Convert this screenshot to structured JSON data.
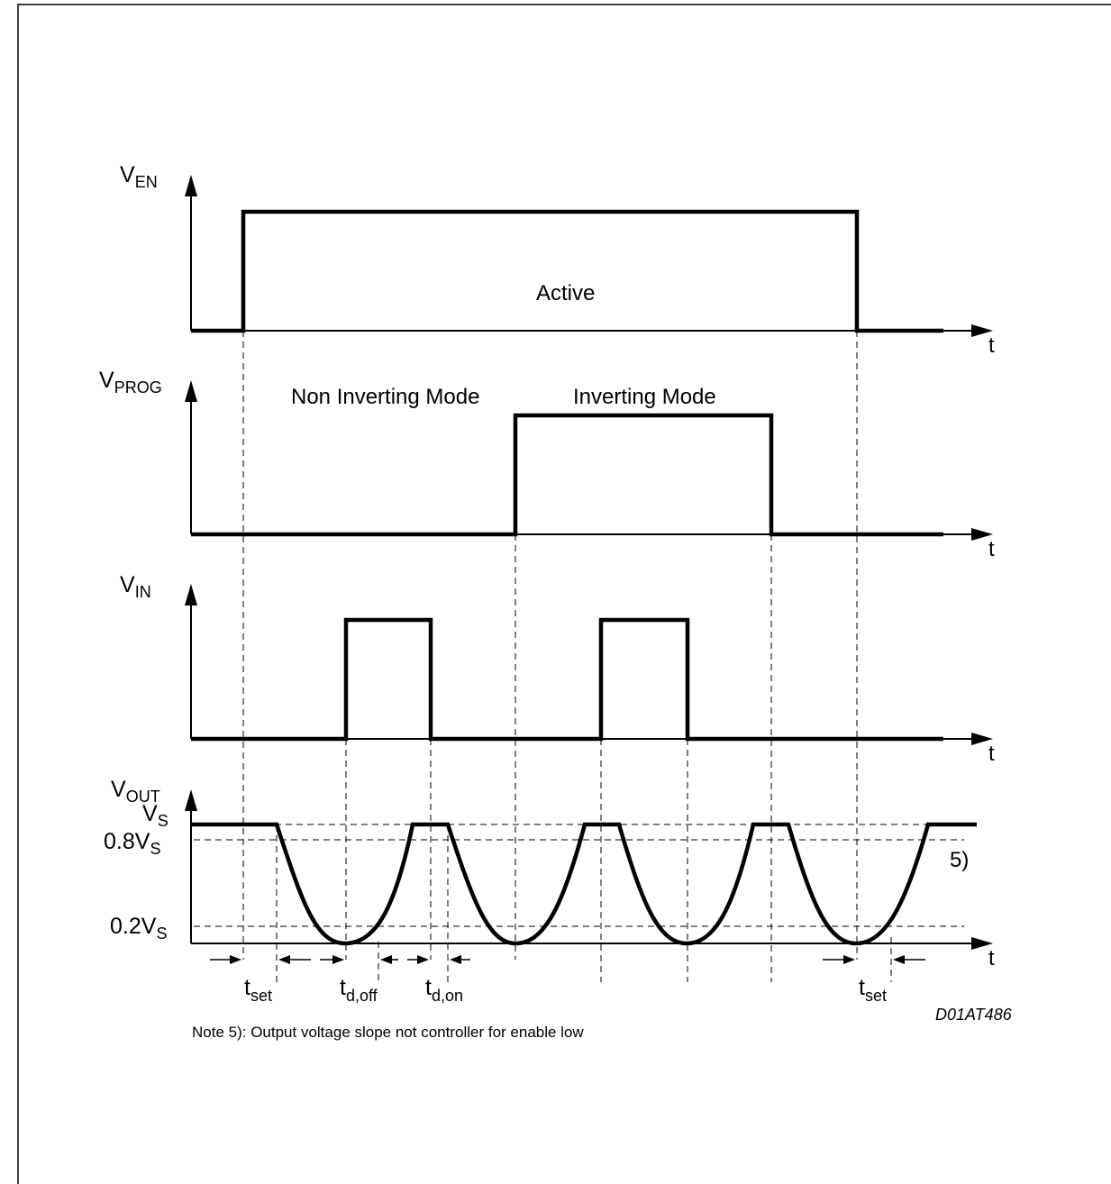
{
  "signals": {
    "en": {
      "base": "V",
      "sub": "EN"
    },
    "prog": {
      "base": "V",
      "sub": "PROG"
    },
    "in": {
      "base": "V",
      "sub": "IN"
    },
    "out": {
      "base": "V",
      "sub": "OUT"
    }
  },
  "time_axis_label": "t",
  "labels": {
    "active": "Active",
    "non_inverting_mode": "Non Inverting Mode",
    "inverting_mode": "Inverting Mode",
    "note_ref": "5)"
  },
  "vout_levels": {
    "vs": {
      "base": "V",
      "sub": "S"
    },
    "v08": {
      "base": "0.8V",
      "sub": "S"
    },
    "v02": {
      "base": "0.2V",
      "sub": "S"
    }
  },
  "timing": {
    "t_set_left": {
      "base": "t",
      "sub": "set"
    },
    "t_d_off": {
      "base": "t",
      "sub": "d,off"
    },
    "t_d_on": {
      "base": "t",
      "sub": "d,on"
    },
    "t_set_right": {
      "base": "t",
      "sub": "set"
    }
  },
  "footnote": "Note 5): Output voltage slope not controller for enable low",
  "diagram_code": "D01AT486"
}
